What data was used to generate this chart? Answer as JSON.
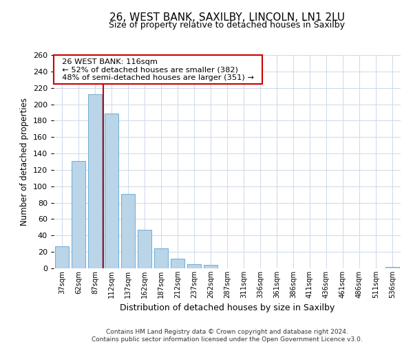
{
  "title": "26, WEST BANK, SAXILBY, LINCOLN, LN1 2LU",
  "subtitle": "Size of property relative to detached houses in Saxilby",
  "xlabel": "Distribution of detached houses by size in Saxilby",
  "ylabel": "Number of detached properties",
  "bar_labels": [
    "37sqm",
    "62sqm",
    "87sqm",
    "112sqm",
    "137sqm",
    "162sqm",
    "187sqm",
    "212sqm",
    "237sqm",
    "262sqm",
    "287sqm",
    "311sqm",
    "336sqm",
    "361sqm",
    "386sqm",
    "411sqm",
    "436sqm",
    "461sqm",
    "486sqm",
    "511sqm",
    "536sqm"
  ],
  "bar_values": [
    27,
    131,
    212,
    189,
    91,
    47,
    24,
    12,
    5,
    4,
    0,
    0,
    0,
    0,
    0,
    0,
    0,
    0,
    0,
    0,
    2
  ],
  "bar_color": "#bad4e8",
  "bar_edge_color": "#6aaed6",
  "vline_index": 3,
  "vline_color": "#cc0000",
  "annotation_title": "26 WEST BANK: 116sqm",
  "annotation_line1": "← 52% of detached houses are smaller (382)",
  "annotation_line2": "48% of semi-detached houses are larger (351) →",
  "annotation_box_color": "#ffffff",
  "annotation_box_edge": "#cc0000",
  "ylim": [
    0,
    260
  ],
  "yticks": [
    0,
    20,
    40,
    60,
    80,
    100,
    120,
    140,
    160,
    180,
    200,
    220,
    240,
    260
  ],
  "footnote1": "Contains HM Land Registry data © Crown copyright and database right 2024.",
  "footnote2": "Contains public sector information licensed under the Open Government Licence v3.0.",
  "bg_color": "#ffffff",
  "grid_color": "#ccd8e8"
}
